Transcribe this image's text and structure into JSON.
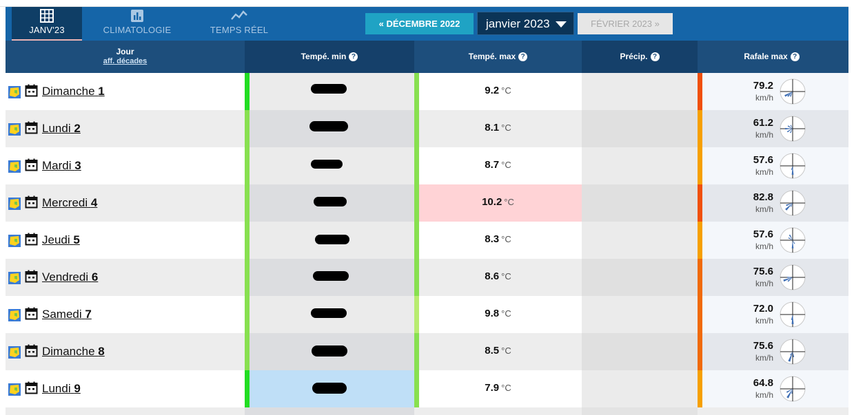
{
  "nav": {
    "tabs": [
      {
        "label": "JANV'23",
        "icon": "grid-icon",
        "active": true
      },
      {
        "label": "CLIMATOLOGIE",
        "icon": "bar-chart-icon",
        "active": false
      },
      {
        "label": "TEMPS RÉEL",
        "icon": "line-chart-icon",
        "active": false
      }
    ],
    "prev_month": "« DÉCEMBRE 2022",
    "month_select": "janvier 2023",
    "next_month": "FÉVRIER 2023 »"
  },
  "table": {
    "headers": {
      "day": "Jour",
      "day_sub": "aff. décades",
      "tmin": "Tempé. min",
      "tmax": "Tempé. max",
      "precip": "Précip.",
      "gust": "Rafale max",
      "help_icon": "?"
    },
    "unit_temp": "°C",
    "unit_wind": "km/h",
    "rows": [
      {
        "day": "Dimanche",
        "num": "1",
        "tmax": "9.2",
        "gust": "79.2"
      },
      {
        "day": "Lundi",
        "num": "2",
        "tmax": "8.1",
        "gust": "61.2"
      },
      {
        "day": "Mardi",
        "num": "3",
        "tmax": "8.7",
        "gust": "57.6"
      },
      {
        "day": "Mercredi",
        "num": "4",
        "tmax": "10.2",
        "gust": "82.8"
      },
      {
        "day": "Jeudi",
        "num": "5",
        "tmax": "8.3",
        "gust": "57.6"
      },
      {
        "day": "Vendredi",
        "num": "6",
        "tmax": "8.6",
        "gust": "75.6"
      },
      {
        "day": "Samedi",
        "num": "7",
        "tmax": "9.8",
        "gust": "72.0"
      },
      {
        "day": "Dimanche",
        "num": "8",
        "tmax": "8.5",
        "gust": "75.6"
      },
      {
        "day": "Lundi",
        "num": "9",
        "tmax": "7.9",
        "gust": "64.8"
      }
    ]
  },
  "colors": {
    "navbar": "#1565a8",
    "header": "#1d4e7c",
    "prev_button": "#1fa3c4",
    "tmax_highlight": "#ffd3d6",
    "tmin_highlight": "#bfdff7",
    "wind_rose": "#3f6fb5"
  }
}
